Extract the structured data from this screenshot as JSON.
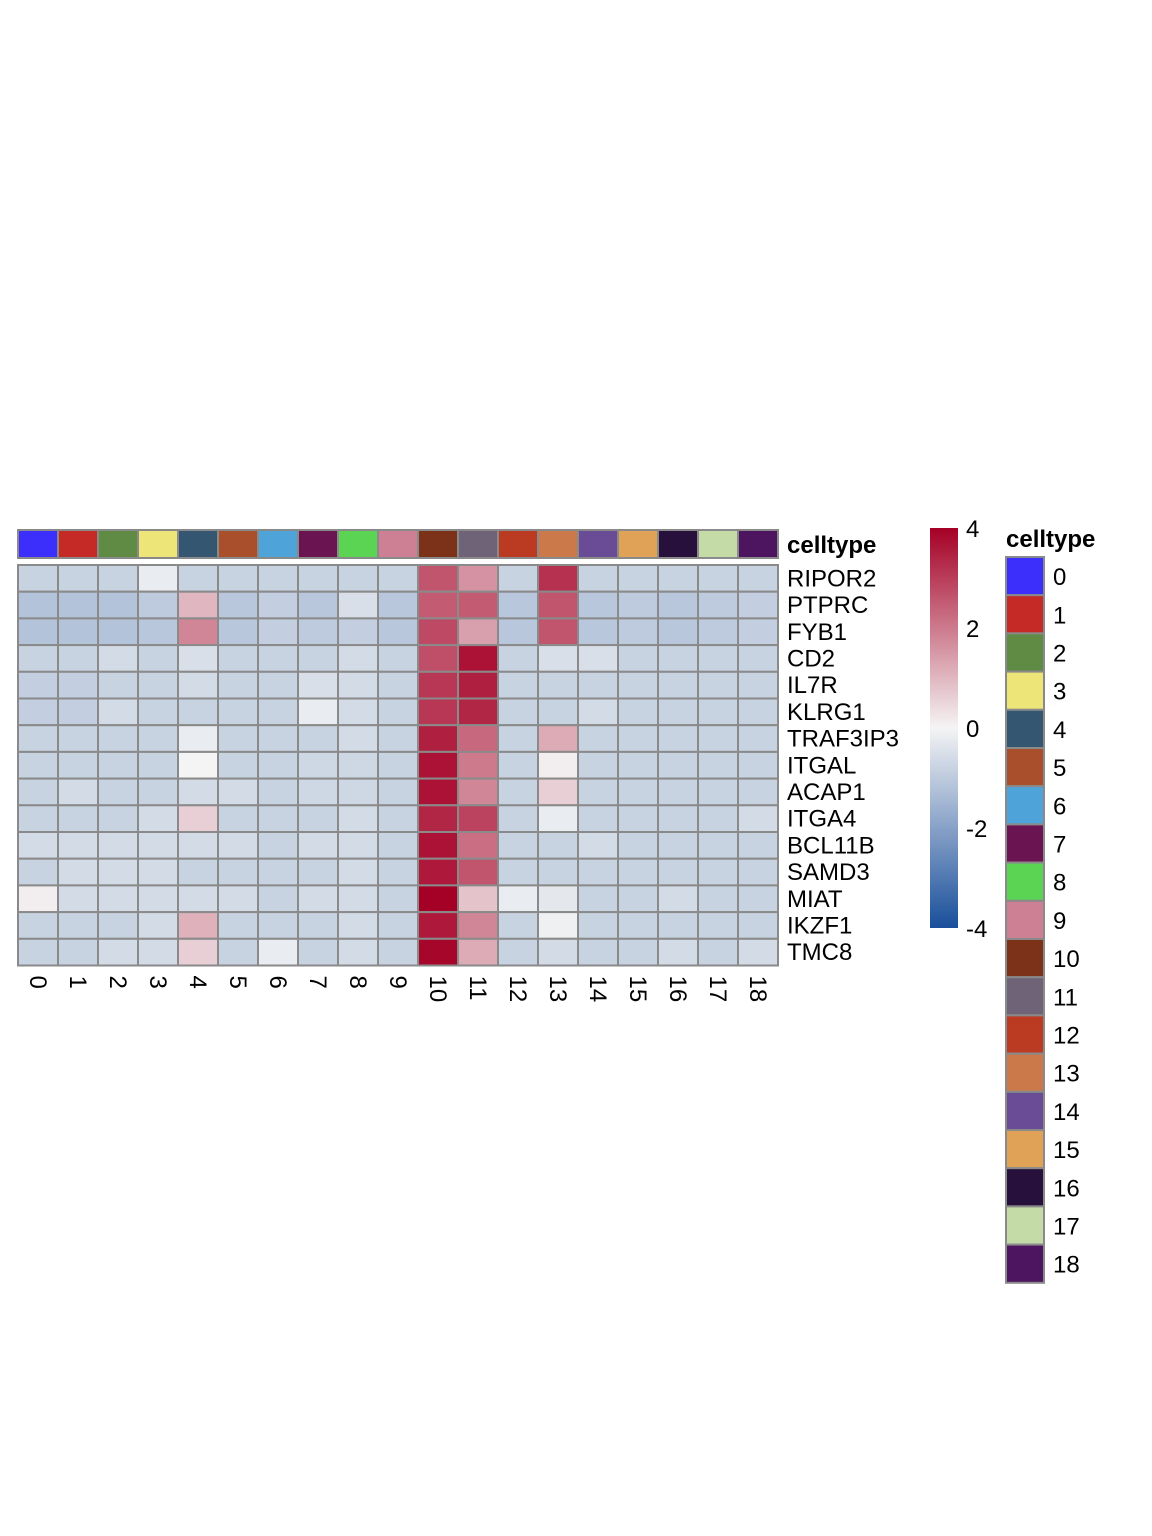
{
  "chart_data": {
    "type": "heatmap",
    "annotation_title": "celltype",
    "legend_title": "celltype",
    "columns": [
      "0",
      "1",
      "2",
      "3",
      "4",
      "5",
      "6",
      "7",
      "8",
      "9",
      "10",
      "11",
      "12",
      "13",
      "14",
      "15",
      "16",
      "17",
      "18"
    ],
    "rows": [
      "RIPOR2",
      "PTPRC",
      "FYB1",
      "CD2",
      "IL7R",
      "KLRG1",
      "TRAF3IP3",
      "ITGAL",
      "ACAP1",
      "ITGA4",
      "BCL11B",
      "SAMD3",
      "MIAT",
      "IKZF1",
      "TMC8"
    ],
    "values": [
      [
        -0.8,
        -0.8,
        -0.8,
        -0.2,
        -0.8,
        -0.8,
        -0.8,
        -0.8,
        -0.8,
        -0.8,
        2.6,
        1.6,
        -0.8,
        3.2,
        -0.8,
        -0.8,
        -0.8,
        -0.8,
        -0.8
      ],
      [
        -1.2,
        -1.2,
        -1.2,
        -1.0,
        1.0,
        -1.1,
        -0.9,
        -1.1,
        -0.5,
        -1.1,
        2.5,
        2.5,
        -1.1,
        2.6,
        -1.1,
        -1.0,
        -1.1,
        -1.0,
        -0.9
      ],
      [
        -1.2,
        -1.2,
        -1.2,
        -1.1,
        1.8,
        -1.1,
        -0.9,
        -1.0,
        -0.9,
        -1.1,
        2.8,
        1.4,
        -1.1,
        2.6,
        -1.1,
        -1.0,
        -1.1,
        -1.0,
        -0.9
      ],
      [
        -0.8,
        -0.8,
        -0.6,
        -0.8,
        -0.5,
        -0.8,
        -0.8,
        -0.8,
        -0.6,
        -0.8,
        2.7,
        3.7,
        -0.8,
        -0.5,
        -0.5,
        -0.8,
        -0.8,
        -0.8,
        -0.8
      ],
      [
        -0.9,
        -0.9,
        -0.8,
        -0.8,
        -0.6,
        -0.8,
        -0.8,
        -0.5,
        -0.6,
        -0.8,
        3.1,
        3.5,
        -0.8,
        -0.8,
        -0.8,
        -0.8,
        -0.8,
        -0.8,
        -0.8
      ],
      [
        -0.9,
        -0.9,
        -0.6,
        -0.8,
        -0.8,
        -0.8,
        -0.8,
        -0.2,
        -0.6,
        -0.8,
        3.1,
        3.4,
        -0.8,
        -0.8,
        -0.6,
        -0.8,
        -0.8,
        -0.8,
        -0.8
      ],
      [
        -0.8,
        -0.8,
        -0.8,
        -0.8,
        -0.2,
        -0.8,
        -0.8,
        -0.8,
        -0.6,
        -0.8,
        3.5,
        2.3,
        -0.8,
        1.2,
        -0.8,
        -0.8,
        -0.8,
        -0.8,
        -0.8
      ],
      [
        -0.8,
        -0.8,
        -0.8,
        -0.8,
        0.0,
        -0.8,
        -0.8,
        -0.7,
        -0.7,
        -0.8,
        3.7,
        2.0,
        -0.8,
        0.1,
        -0.8,
        -0.8,
        -0.8,
        -0.8,
        -0.8
      ],
      [
        -0.8,
        -0.6,
        -0.8,
        -0.8,
        -0.6,
        -0.6,
        -0.8,
        -0.7,
        -0.7,
        -0.8,
        3.7,
        1.8,
        -0.8,
        0.6,
        -0.8,
        -0.8,
        -0.8,
        -0.8,
        -0.8
      ],
      [
        -0.8,
        -0.8,
        -0.8,
        -0.6,
        0.6,
        -0.8,
        -0.8,
        -0.8,
        -0.6,
        -0.8,
        3.4,
        2.9,
        -0.8,
        -0.2,
        -0.8,
        -0.8,
        -0.8,
        -0.8,
        -0.6
      ],
      [
        -0.6,
        -0.6,
        -0.6,
        -0.6,
        -0.6,
        -0.6,
        -0.8,
        -0.6,
        -0.6,
        -0.8,
        3.7,
        2.2,
        -0.8,
        -0.8,
        -0.6,
        -0.8,
        -0.8,
        -0.8,
        -0.8
      ],
      [
        -0.8,
        -0.6,
        -0.6,
        -0.6,
        -0.8,
        -0.8,
        -0.8,
        -0.8,
        -0.6,
        -0.8,
        3.6,
        2.6,
        -0.8,
        -0.8,
        -0.8,
        -0.8,
        -0.8,
        -0.8,
        -0.8
      ],
      [
        0.1,
        -0.6,
        -0.6,
        -0.6,
        -0.6,
        -0.6,
        -0.8,
        -0.6,
        -0.6,
        -0.8,
        4.0,
        0.8,
        -0.2,
        -0.3,
        -0.8,
        -0.8,
        -0.6,
        -0.8,
        -0.8
      ],
      [
        -0.8,
        -0.8,
        -0.8,
        -0.6,
        1.1,
        -0.8,
        -0.8,
        -0.8,
        -0.6,
        -0.8,
        3.6,
        1.8,
        -0.8,
        -0.1,
        -0.8,
        -0.8,
        -0.8,
        -0.8,
        -0.8
      ],
      [
        -0.8,
        -0.8,
        -0.6,
        -0.6,
        0.6,
        -0.8,
        -0.2,
        -0.8,
        -0.6,
        -0.8,
        3.9,
        1.2,
        -0.8,
        -0.6,
        -0.8,
        -0.8,
        -0.6,
        -0.8,
        -0.6
      ]
    ],
    "scale_range": [
      -4,
      4
    ],
    "scale_ticks": [
      "4",
      "2",
      "0",
      "-2",
      "-4"
    ],
    "scale_colors": [
      "#1a4f9b",
      "#f4f4f4",
      "#a50026"
    ],
    "celltype_colors": [
      "#3c2ffb",
      "#c52a26",
      "#5f8b44",
      "#eee578",
      "#355670",
      "#a94f2b",
      "#4ea3d8",
      "#6b1452",
      "#5bd454",
      "#cd7f93",
      "#7b3218",
      "#6f6378",
      "#bb3b22",
      "#cb794a",
      "#6a4c96",
      "#e0a256",
      "#27103b",
      "#c4dba8",
      "#4d145f"
    ],
    "legend_position": "right",
    "grid": true
  }
}
